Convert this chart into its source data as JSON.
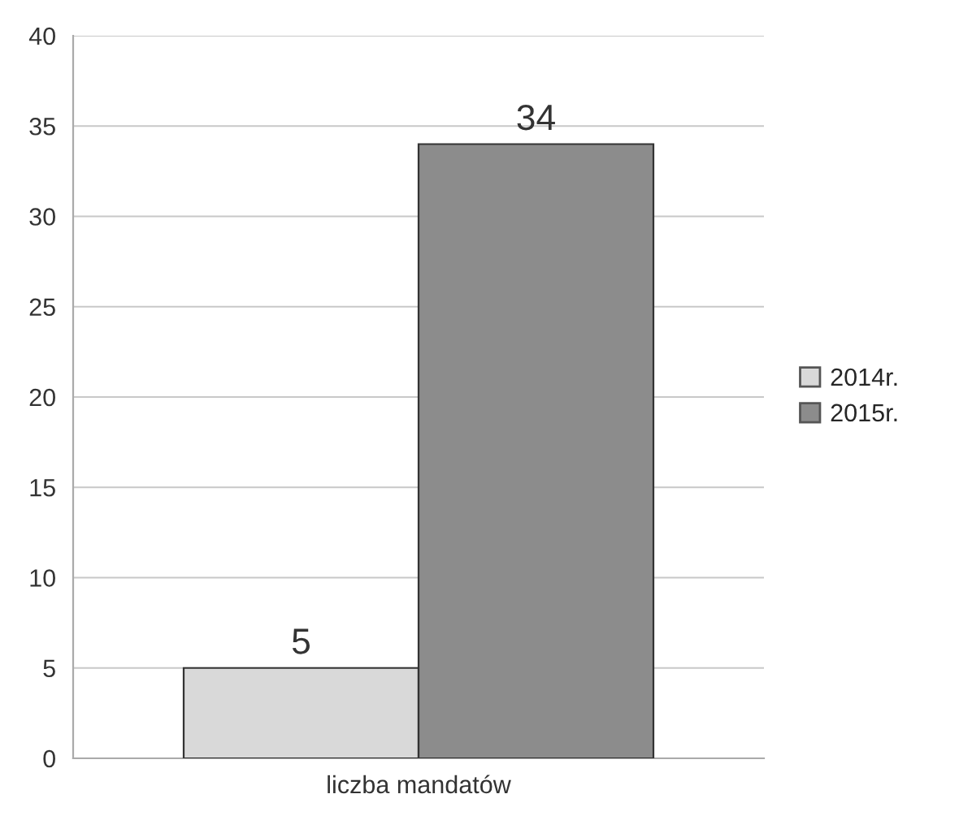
{
  "chart_data": {
    "type": "bar",
    "categories": [
      "liczba mandatów"
    ],
    "series": [
      {
        "name": "2014r.",
        "color": "#d9d9d9",
        "values": [
          5
        ]
      },
      {
        "name": "2015r.",
        "color": "#8c8c8c",
        "values": [
          34
        ]
      }
    ],
    "ylim": [
      0,
      40
    ],
    "yticks": [
      0,
      5,
      10,
      15,
      20,
      25,
      30,
      35,
      40
    ],
    "grid": "y",
    "legend": "right",
    "data_labels": true
  }
}
